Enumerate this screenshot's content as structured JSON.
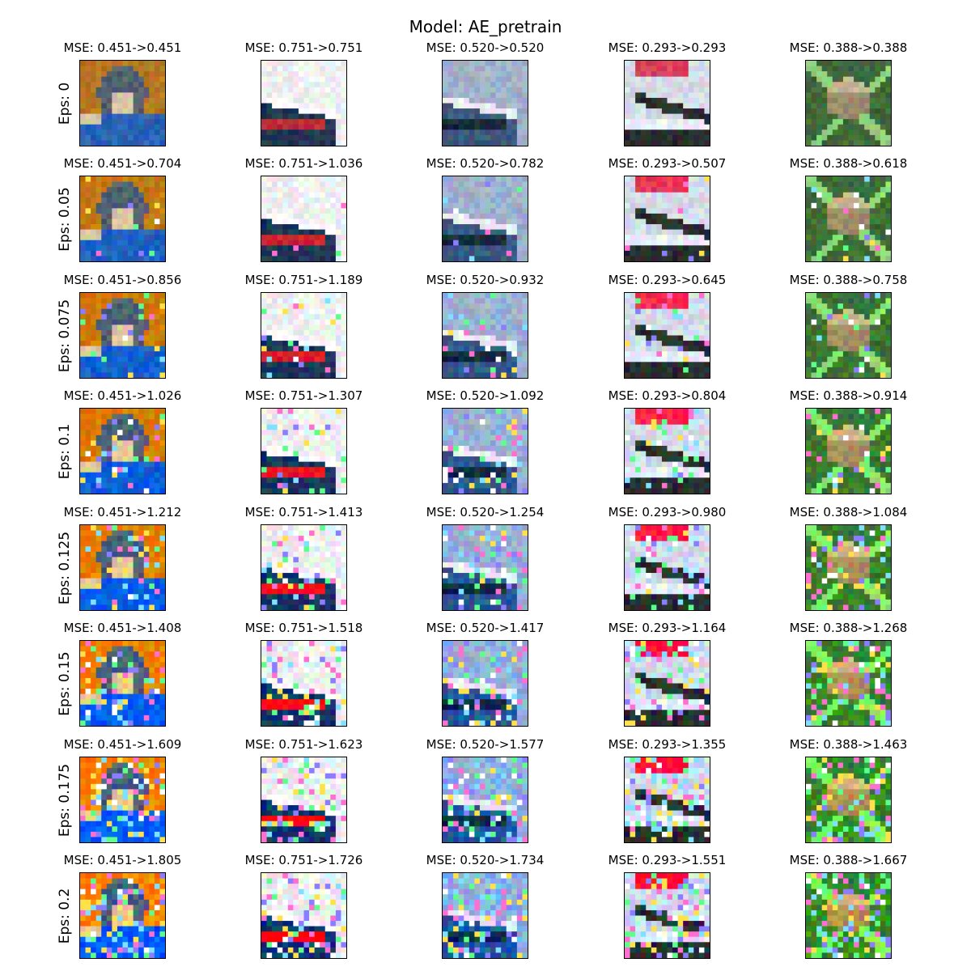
{
  "figure": {
    "title": "Model: AE_pretrain"
  },
  "rows": [
    {
      "label": "Eps: 0",
      "cells": [
        "MSE: 0.451->0.451",
        "MSE: 0.751->0.751",
        "MSE: 0.520->0.520",
        "MSE: 0.293->0.293",
        "MSE: 0.388->0.388"
      ]
    },
    {
      "label": "Eps: 0.05",
      "cells": [
        "MSE: 0.451->0.704",
        "MSE: 0.751->1.036",
        "MSE: 0.520->0.782",
        "MSE: 0.293->0.507",
        "MSE: 0.388->0.618"
      ]
    },
    {
      "label": "Eps: 0.075",
      "cells": [
        "MSE: 0.451->0.856",
        "MSE: 0.751->1.189",
        "MSE: 0.520->0.932",
        "MSE: 0.293->0.645",
        "MSE: 0.388->0.758"
      ]
    },
    {
      "label": "Eps: 0.1",
      "cells": [
        "MSE: 0.451->1.026",
        "MSE: 0.751->1.307",
        "MSE: 0.520->1.092",
        "MSE: 0.293->0.804",
        "MSE: 0.388->0.914"
      ]
    },
    {
      "label": "Eps: 0.125",
      "cells": [
        "MSE: 0.451->1.212",
        "MSE: 0.751->1.413",
        "MSE: 0.520->1.254",
        "MSE: 0.293->0.980",
        "MSE: 0.388->1.084"
      ]
    },
    {
      "label": "Eps: 0.15",
      "cells": [
        "MSE: 0.451->1.408",
        "MSE: 0.751->1.518",
        "MSE: 0.520->1.417",
        "MSE: 0.293->1.164",
        "MSE: 0.388->1.268"
      ]
    },
    {
      "label": "Eps: 0.175",
      "cells": [
        "MSE: 0.451->1.609",
        "MSE: 0.751->1.623",
        "MSE: 0.520->1.577",
        "MSE: 0.293->1.355",
        "MSE: 0.388->1.463"
      ]
    },
    {
      "label": "Eps: 0.2",
      "cells": [
        "MSE: 0.451->1.805",
        "MSE: 0.751->1.726",
        "MSE: 0.520->1.734",
        "MSE: 0.293->1.551",
        "MSE: 0.388->1.667"
      ]
    }
  ],
  "columns": [
    {
      "subject": "cat",
      "colors": {
        "bg": "#b5781f",
        "main": "#56606e",
        "accent": "#2b63b5",
        "light": "#d9c9a8"
      }
    },
    {
      "subject": "ship",
      "colors": {
        "bg": "#eef0f2",
        "main": "#203652",
        "accent": "#c0283a",
        "light": "#ffffff"
      }
    },
    {
      "subject": "ship",
      "colors": {
        "bg": "#9fb2c8",
        "main": "#3c5a7d",
        "accent": "#1a2838",
        "light": "#e9eef4"
      }
    },
    {
      "subject": "plane",
      "colors": {
        "bg": "#d4dae4",
        "main": "#2c2c30",
        "accent": "#d8405a",
        "light": "#eef1f7"
      }
    },
    {
      "subject": "frog",
      "colors": {
        "bg": "#3f6a3a",
        "main": "#9c8a6a",
        "accent": "#8fd07a",
        "light": "#c8b594"
      }
    }
  ]
}
